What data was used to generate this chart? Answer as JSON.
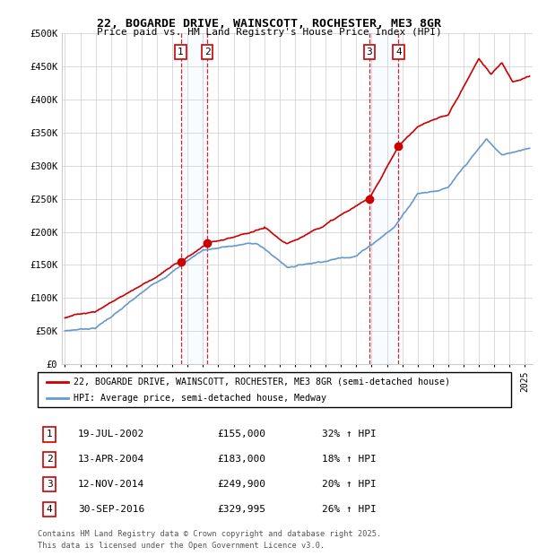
{
  "title": "22, BOGARDE DRIVE, WAINSCOTT, ROCHESTER, ME3 8GR",
  "subtitle": "Price paid vs. HM Land Registry's House Price Index (HPI)",
  "legend_property": "22, BOGARDE DRIVE, WAINSCOTT, ROCHESTER, ME3 8GR (semi-detached house)",
  "legend_hpi": "HPI: Average price, semi-detached house, Medway",
  "footer1": "Contains HM Land Registry data © Crown copyright and database right 2025.",
  "footer2": "This data is licensed under the Open Government Licence v3.0.",
  "sales": [
    {
      "num": 1,
      "date": "19-JUL-2002",
      "price": "£155,000",
      "change": "32% ↑ HPI",
      "year": 2002.55
    },
    {
      "num": 2,
      "date": "13-APR-2004",
      "price": "£183,000",
      "change": "18% ↑ HPI",
      "year": 2004.28
    },
    {
      "num": 3,
      "date": "12-NOV-2014",
      "price": "£249,900",
      "change": "20% ↑ HPI",
      "year": 2014.86
    },
    {
      "num": 4,
      "date": "30-SEP-2016",
      "price": "£329,995",
      "change": "26% ↑ HPI",
      "year": 2016.75
    }
  ],
  "sale_prices": [
    155000,
    183000,
    249900,
    329995
  ],
  "ylim": [
    0,
    500000
  ],
  "xlim": [
    1994.8,
    2025.5
  ],
  "yticks": [
    0,
    50000,
    100000,
    150000,
    200000,
    250000,
    300000,
    350000,
    400000,
    450000,
    500000
  ],
  "ytick_labels": [
    "£0",
    "£50K",
    "£100K",
    "£150K",
    "£200K",
    "£250K",
    "£300K",
    "£350K",
    "£400K",
    "£450K",
    "£500K"
  ],
  "property_color": "#cc0000",
  "hpi_color": "#6699cc",
  "shade_color": "#ddeeff",
  "vline_color": "#cc0000",
  "grid_color": "#cccccc",
  "background_color": "#ffffff"
}
